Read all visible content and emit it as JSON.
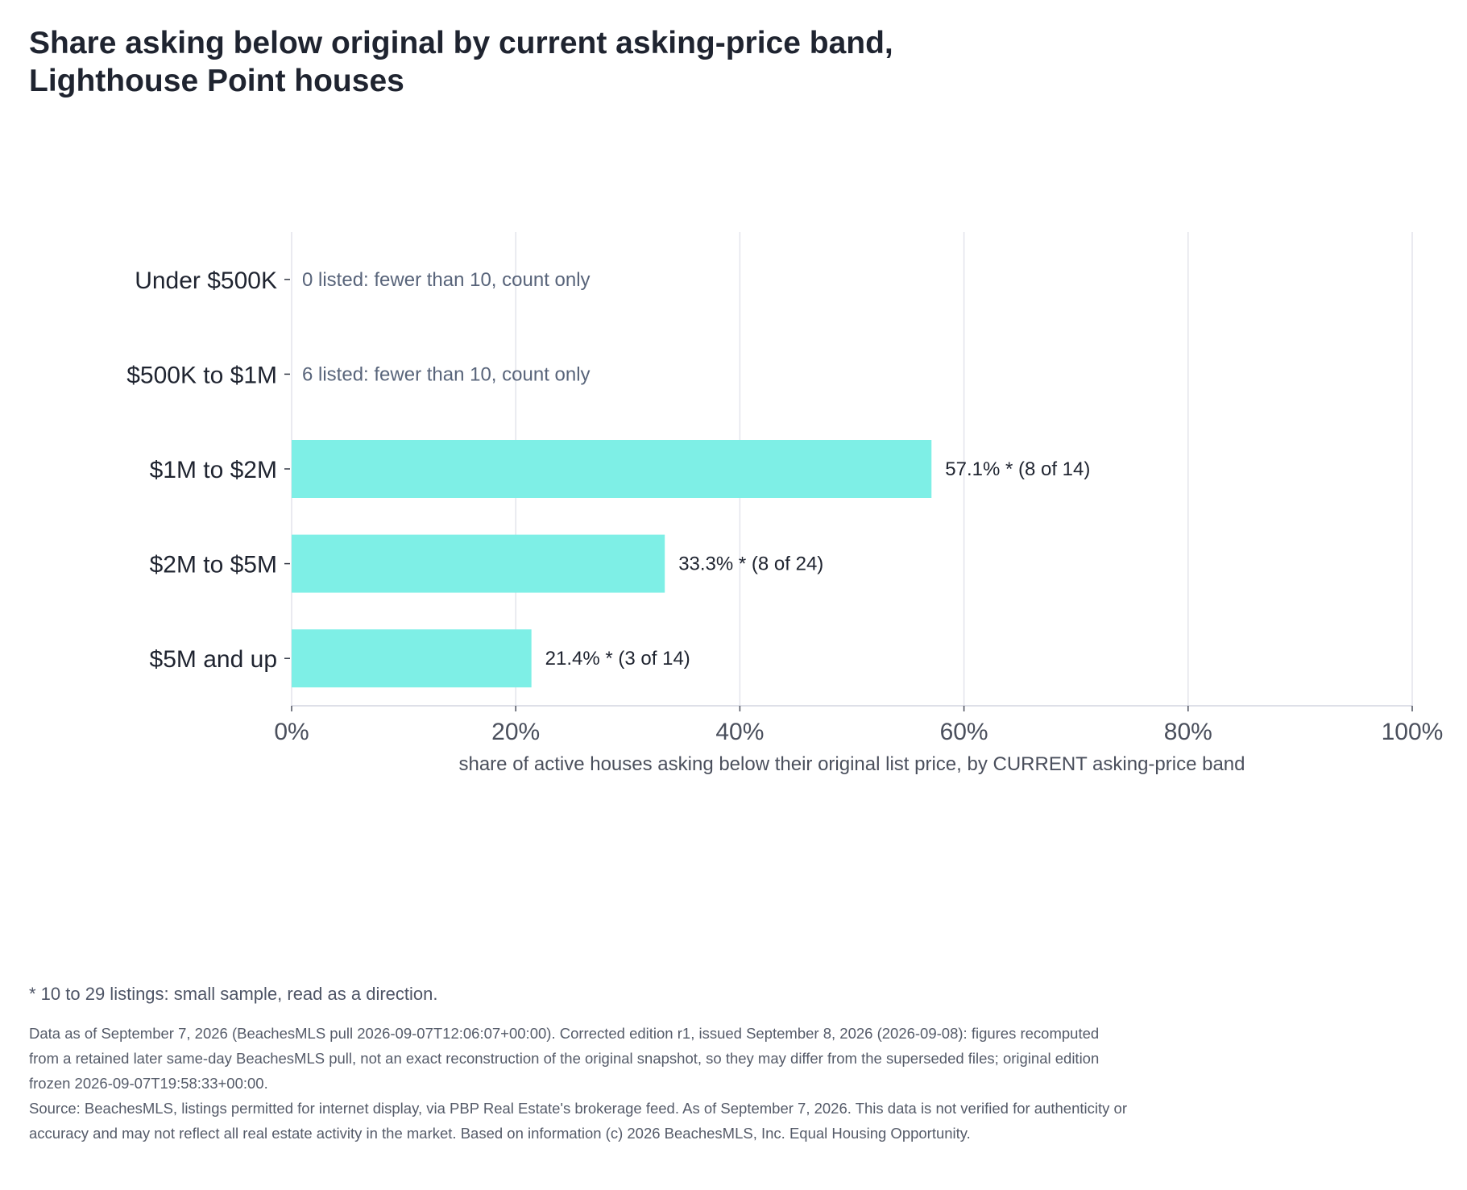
{
  "title_lines": [
    "Share asking below original by current asking-price band,",
    "Lighthouse Point houses"
  ],
  "chart_data": {
    "type": "bar",
    "orientation": "horizontal",
    "categories": [
      "Under $500K",
      "$500K to $1M",
      "$1M to $2M",
      "$2M to $5M",
      "$5M and up"
    ],
    "values": [
      null,
      null,
      57.1,
      33.3,
      21.4
    ],
    "bar_labels": [
      "",
      "",
      "57.1% *  (8 of 14)",
      "33.3% *  (8 of 24)",
      "21.4% *  (3 of 14)"
    ],
    "notes": [
      "0 listed: fewer than 10, count only",
      "6 listed: fewer than 10, count only",
      "",
      "",
      ""
    ],
    "xlim": [
      0,
      100
    ],
    "xticks": [
      0,
      20,
      40,
      60,
      80,
      100
    ],
    "xtick_labels": [
      "0%",
      "20%",
      "40%",
      "60%",
      "80%",
      "100%"
    ],
    "xlabel": "share of active houses asking below their original list price, by CURRENT asking-price band",
    "ylabel": "",
    "grid": "vertical",
    "bar_color": "#7eefe6",
    "grid_color": "#e3e4ec",
    "note_color": "#58647a"
  },
  "footnote": "* 10 to 29 listings: small sample, read as a direction.",
  "source_lines": [
    "Data as of September 7, 2026 (BeachesMLS pull 2026-09-07T12:06:07+00:00). Corrected edition r1, issued September 8, 2026 (2026-09-08): figures recomputed from a retained later same-day BeachesMLS pull, not an exact reconstruction of the original snapshot, so they may differ from the superseded files; original edition frozen 2026-09-07T19:58:33+00:00.",
    "Source: BeachesMLS, listings permitted for internet display, via PBP Real Estate's brokerage feed. As of September 7, 2026. This data is not verified for authenticity or accuracy and may not reflect all real estate activity in the market. Based on information (c) 2026 BeachesMLS, Inc. Equal Housing Opportunity."
  ]
}
